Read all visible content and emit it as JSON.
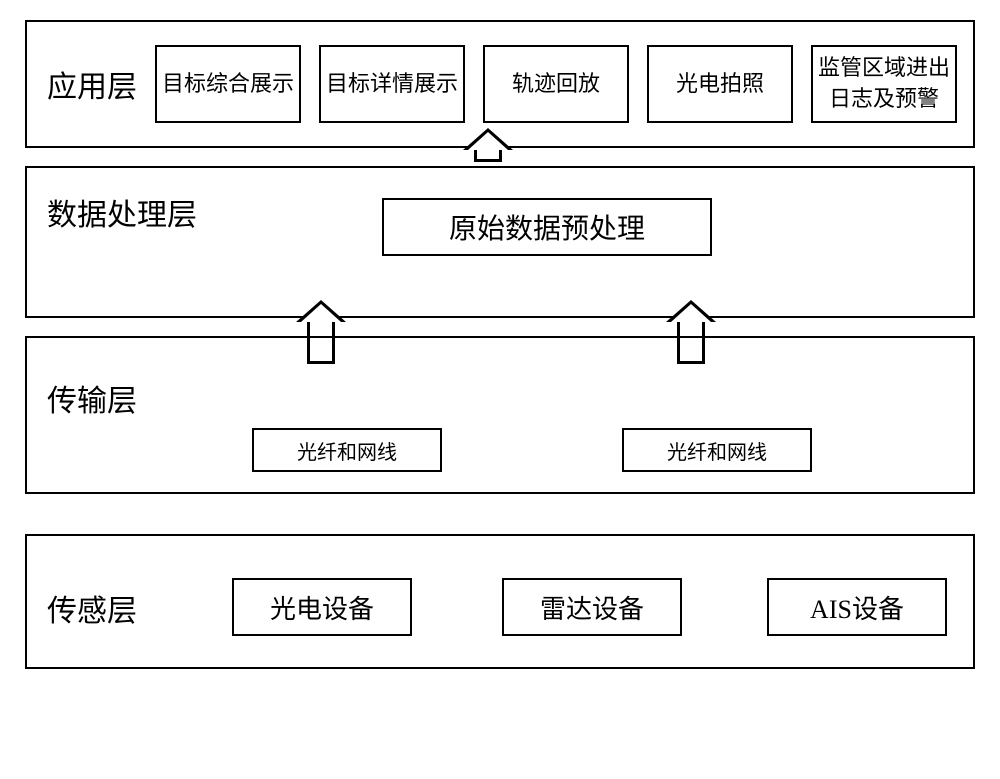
{
  "type": "layered-architecture-diagram",
  "background_color": "#ffffff",
  "border_color": "#000000",
  "font_family": "SimSun",
  "layer_label_fontsize": 30,
  "box_fontsize": 22,
  "layers": {
    "application": {
      "label": "应用层",
      "boxes": [
        "目标综合展示",
        "目标详情展示",
        "轨迹回放",
        "光电拍照",
        "监管区域进出日志及预警"
      ]
    },
    "data_processing": {
      "label": "数据处理层",
      "box": "原始数据预处理"
    },
    "transport": {
      "label": "传输层",
      "boxes": [
        "光纤和网线",
        "光纤和网线"
      ]
    },
    "sensing": {
      "label": "传感层",
      "boxes": [
        "光电设备",
        "雷达设备",
        "AIS设备"
      ]
    }
  },
  "arrows": [
    {
      "from": "data_processing",
      "to": "application",
      "direction": "up"
    },
    {
      "from": "transport.boxes.0",
      "to": "data_processing",
      "direction": "up"
    },
    {
      "from": "transport.boxes.1",
      "to": "data_processing",
      "direction": "up"
    }
  ]
}
